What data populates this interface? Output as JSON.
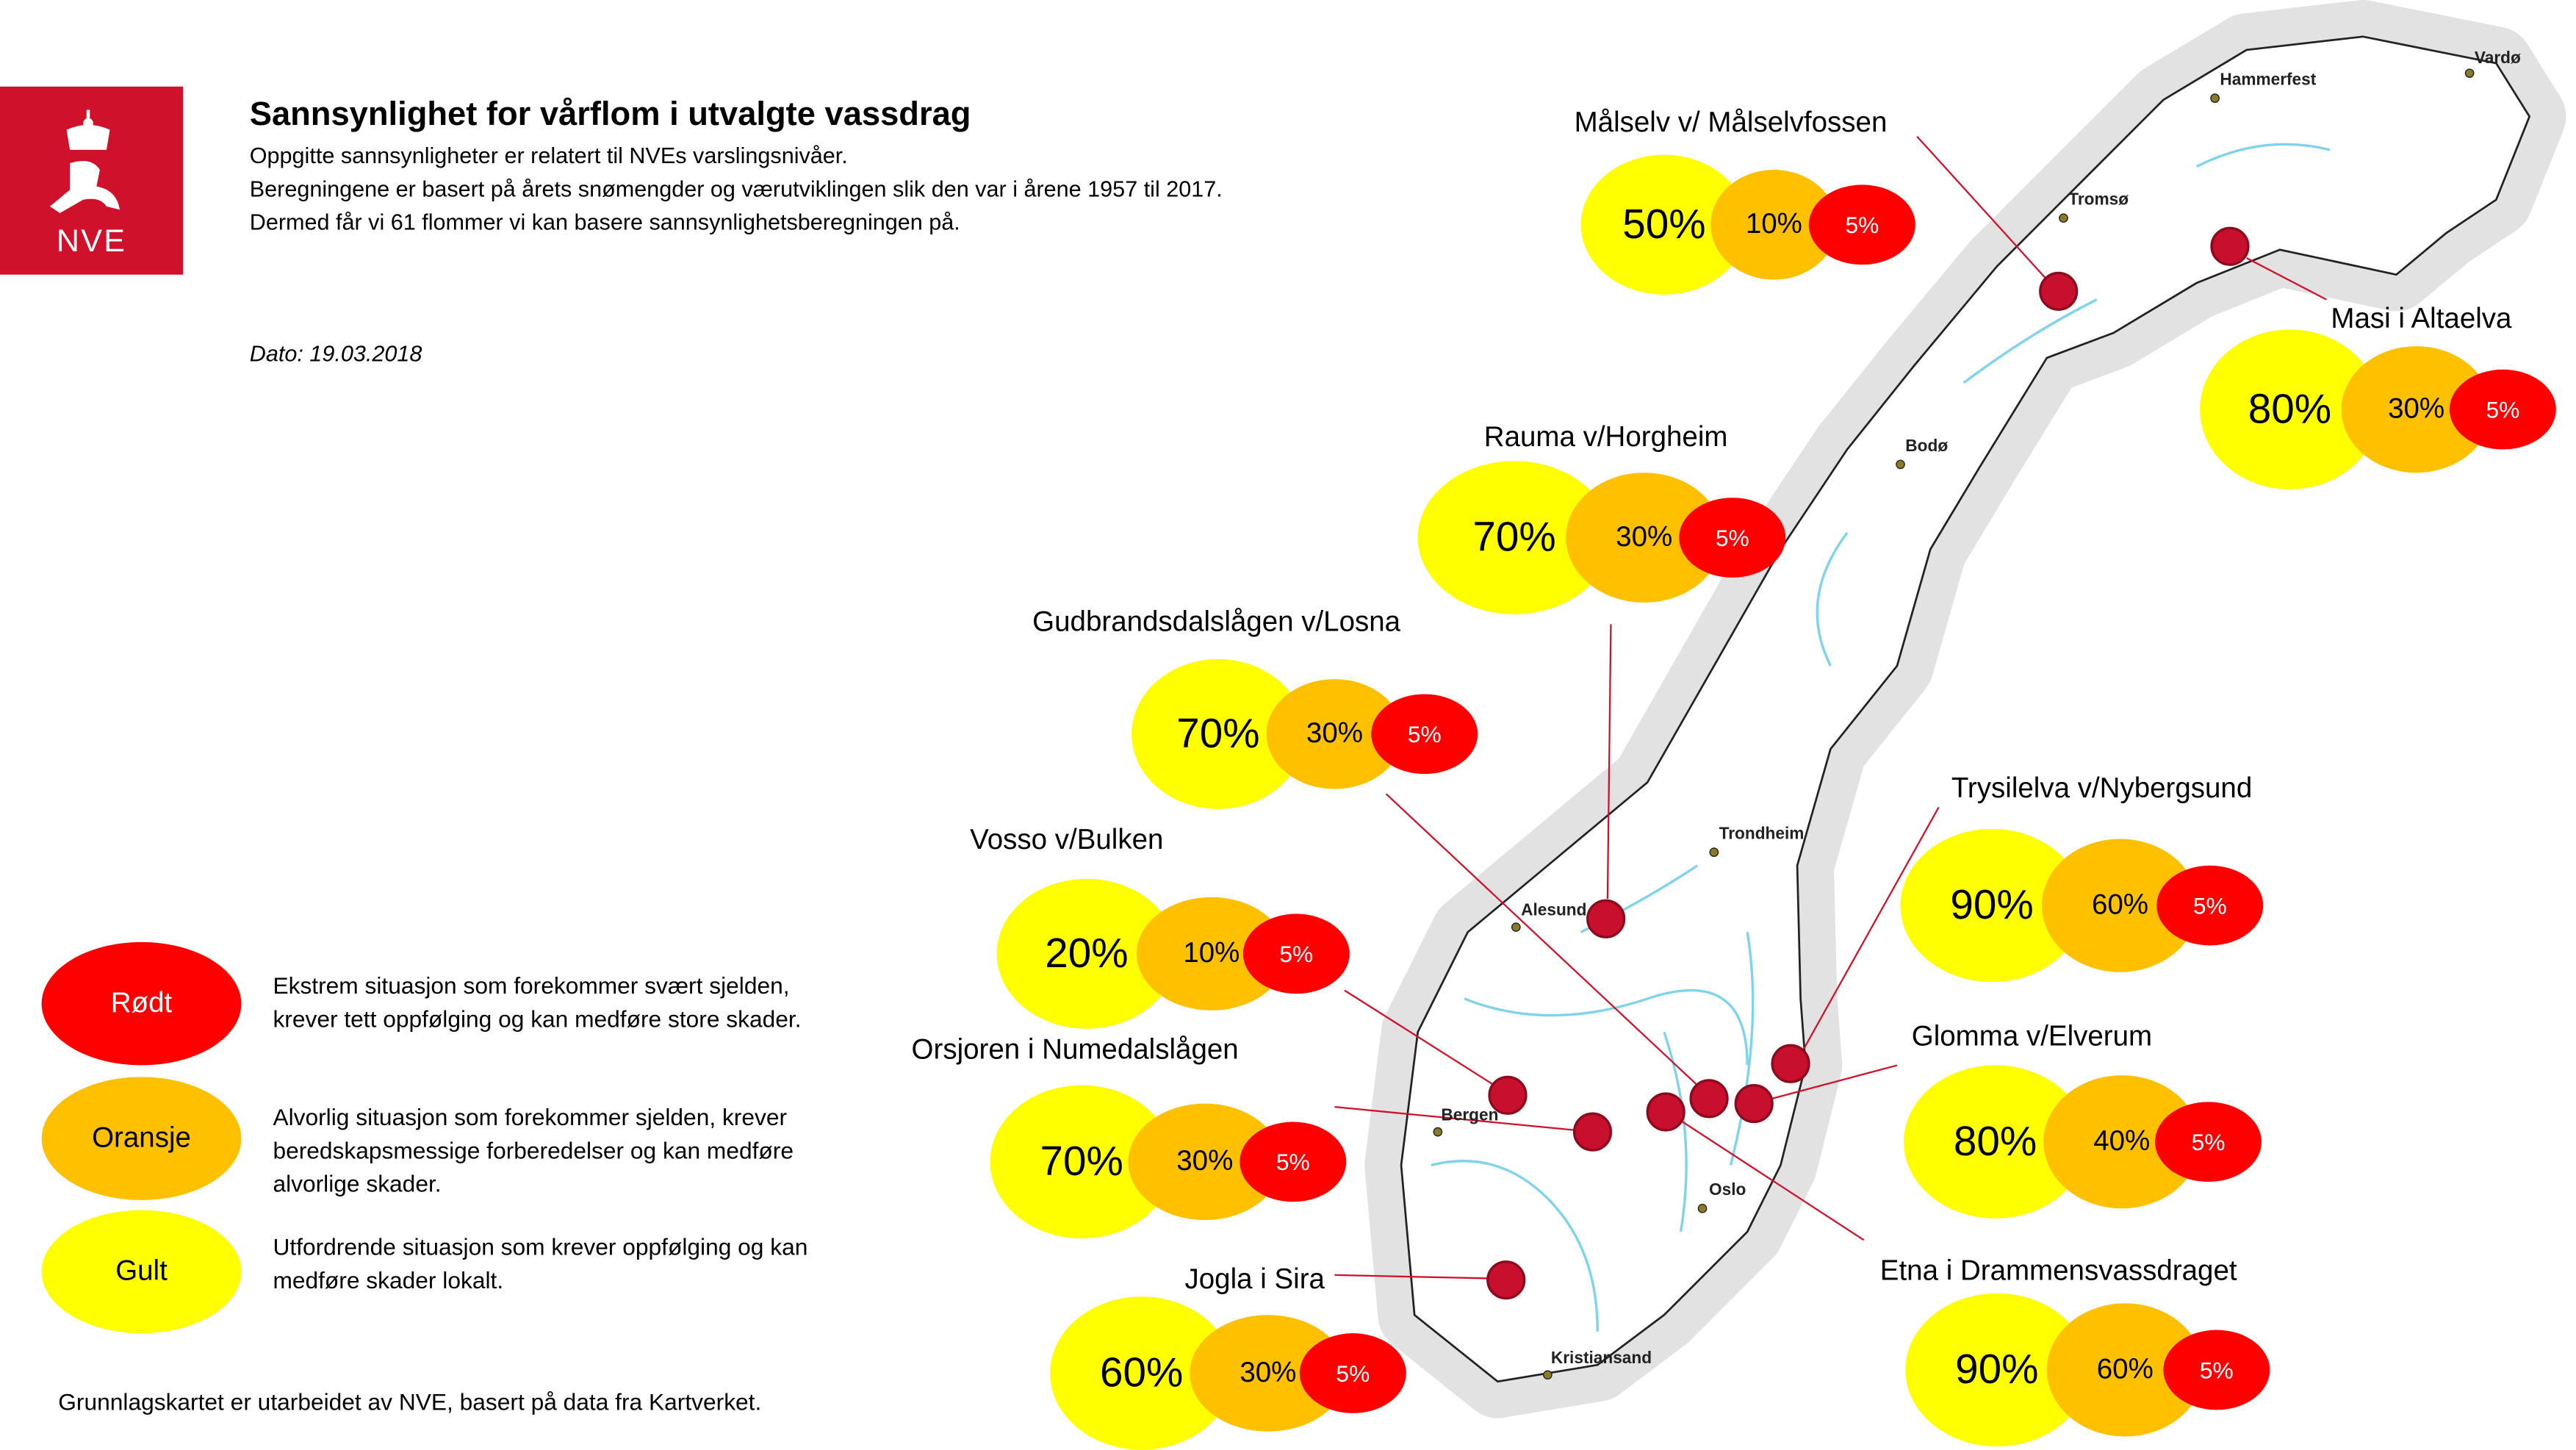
{
  "header": {
    "logo_text": "NVE",
    "title": "Sannsynlighet for vårflom i utvalgte vassdrag",
    "line1": "Oppgitte sannsynligheter er relatert til NVEs varslingsnivåer.",
    "line2": "Beregningene er basert på årets snømengder og værutviklingen slik den var i årene 1957 til 2017.  Dermed får vi 61 flommer vi kan basere sannsynlighetsberegningen på.",
    "date": "Dato: 19.03.2018"
  },
  "colors": {
    "yellow": "#ffff00",
    "orange": "#ffc000",
    "red": "#ff0000",
    "marker": "#c8102e"
  },
  "stations": [
    {
      "name": "Målselv v/ Målselvfossen",
      "yellow": "50%",
      "orange": "10%",
      "red": "5%"
    },
    {
      "name": "Masi i Altaelva",
      "yellow": "80%",
      "orange": "30%",
      "red": "5%"
    },
    {
      "name": "Rauma v/Horgheim",
      "yellow": "70%",
      "orange": "30%",
      "red": "5%"
    },
    {
      "name": "Gudbrandsdalslågen v/Losna",
      "yellow": "70%",
      "orange": "30%",
      "red": "5%"
    },
    {
      "name": "Vosso v/Bulken",
      "yellow": "20%",
      "orange": "10%",
      "red": "5%"
    },
    {
      "name": "Orsjoren i Numedalslågen",
      "yellow": "70%",
      "orange": "30%",
      "red": "5%"
    },
    {
      "name": "Jogla i Sira",
      "yellow": "60%",
      "orange": "30%",
      "red": "5%"
    },
    {
      "name": "Trysilelva v/Nybergsund",
      "yellow": "90%",
      "orange": "60%",
      "red": "5%"
    },
    {
      "name": "Glomma v/Elverum",
      "yellow": "80%",
      "orange": "40%",
      "red": "5%"
    },
    {
      "name": "Etna i Drammensvassdraget",
      "yellow": "90%",
      "orange": "60%",
      "red": "5%"
    }
  ],
  "cities": [
    "Vardø",
    "Hammerfest",
    "Tromsø",
    "Bodø",
    "Trondheim",
    "Alesund",
    "Bergen",
    "Oslo",
    "Kristiansand"
  ],
  "legend": [
    {
      "label": "Rødt",
      "text": "Ekstrem situasjon som forekommer svært sjelden, krever tett oppfølging og kan medføre store skader."
    },
    {
      "label": "Oransje",
      "text": "Alvorlig situasjon som forekommer sjelden, krever beredskapsmessige forberedelser og kan medføre alvorlige skader."
    },
    {
      "label": "Gult",
      "text": "Utfordrende situasjon som krever oppfølging og kan medføre skader lokalt."
    }
  ],
  "footer": "Grunnlagskartet er utarbeidet av NVE, basert på data fra Kartverket."
}
